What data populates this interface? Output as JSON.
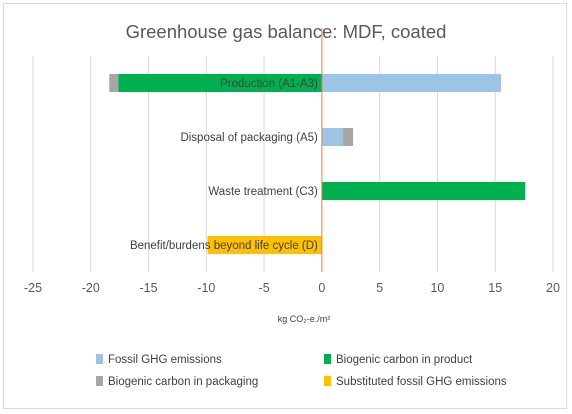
{
  "chart_data": {
    "type": "bar",
    "orientation": "horizontal",
    "stacked": true,
    "title": "Greenhouse gas balance: MDF, coated",
    "xlabel": "kg CO₂-e./m²",
    "xlim": [
      -25,
      20
    ],
    "xticks": [
      -25,
      -20,
      -15,
      -10,
      -5,
      0,
      5,
      10,
      15,
      20
    ],
    "grid": "vertical",
    "legend_position": "bottom",
    "categories": [
      "Production (A1-A3)",
      "Disposal of packaging (A5)",
      "Waste treatment (C3)",
      "Benefit/burdens beyond life cycle (D)"
    ],
    "series": [
      {
        "name": "Fossil GHG emissions",
        "color": "#9dc3e6",
        "values": [
          15.5,
          1.8,
          0,
          0
        ]
      },
      {
        "name": "Biogenic carbon in product",
        "color": "#00b050",
        "values": [
          -17.6,
          0,
          17.6,
          0
        ]
      },
      {
        "name": "Biogenic carbon in packaging",
        "color": "#a6a6a6",
        "values": [
          -0.8,
          0.9,
          0,
          0
        ]
      },
      {
        "name": "Substituted fossil GHG emissions",
        "color": "#ffc000",
        "values": [
          0,
          0,
          0,
          -9.9
        ]
      }
    ]
  }
}
